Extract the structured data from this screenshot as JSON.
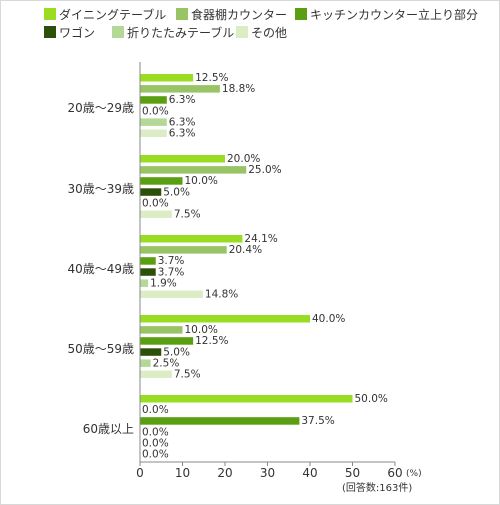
{
  "chart_data": {
    "type": "bar",
    "orientation": "horizontal",
    "categories": [
      "20歳〜29歳",
      "30歳〜39歳",
      "40歳〜49歳",
      "50歳〜59歳",
      "60歳以上"
    ],
    "series": [
      {
        "name": "ダイニングテーブル",
        "color": "#99dd22",
        "values": [
          12.5,
          20.0,
          24.1,
          40.0,
          50.0
        ]
      },
      {
        "name": "食器棚カウンター",
        "color": "#99c466",
        "values": [
          18.8,
          25.0,
          20.4,
          10.0,
          0.0
        ]
      },
      {
        "name": "キッチンカウンター立上り部分",
        "color": "#5a9e12",
        "values": [
          6.3,
          10.0,
          3.7,
          12.5,
          37.5
        ]
      },
      {
        "name": "ワゴン",
        "color": "#2c4f0c",
        "values": [
          0.0,
          5.0,
          3.7,
          5.0,
          0.0
        ]
      },
      {
        "name": "折りたたみテーブル",
        "color": "#b4d896",
        "values": [
          6.3,
          0.0,
          1.9,
          2.5,
          0.0
        ]
      },
      {
        "name": "その他",
        "color": "#dcedc6",
        "values": [
          6.3,
          7.5,
          14.8,
          7.5,
          0.0
        ]
      }
    ],
    "value_labels": [
      [
        "12.5%",
        "18.8%",
        "6.3%",
        "0.0%",
        "6.3%",
        "6.3%"
      ],
      [
        "20.0%",
        "25.0%",
        "10.0%",
        "5.0%",
        "0.0%",
        "7.5%"
      ],
      [
        "24.1%",
        "20.4%",
        "3.7%",
        "3.7%",
        "1.9%",
        "14.8%"
      ],
      [
        "40.0%",
        "10.0%",
        "12.5%",
        "5.0%",
        "2.5%",
        "7.5%"
      ],
      [
        "50.0%",
        "0.0%",
        "37.5%",
        "0.0%",
        "0.0%",
        "0.0%"
      ]
    ],
    "x_ticks": [
      "0",
      "10",
      "20",
      "30",
      "40",
      "50",
      "60"
    ],
    "xlim": [
      0,
      60
    ],
    "unit_label": "(%)",
    "note": "(回答数:163件)",
    "legend_position": "top",
    "grid": false
  }
}
